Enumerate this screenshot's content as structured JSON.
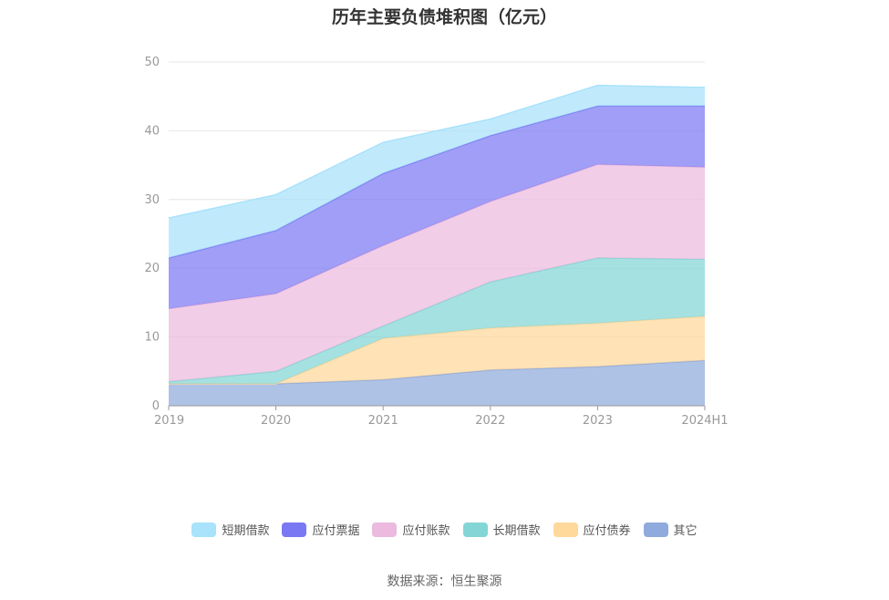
{
  "chart_data": {
    "type": "area",
    "stacked": true,
    "title": "历年主要负债堆积图（亿元）",
    "x": [
      "2019",
      "2020",
      "2021",
      "2022",
      "2023",
      "2024H1"
    ],
    "y_ticks": [
      "0",
      "10",
      "20",
      "30",
      "40",
      "50"
    ],
    "ylim": [
      0,
      50
    ],
    "grid": true,
    "legend_position": "bottom-center",
    "series": [
      {
        "name": "其它",
        "color": "#8faadc",
        "values": [
          3.2,
          3.2,
          3.8,
          5.2,
          5.7,
          6.6
        ]
      },
      {
        "name": "应付债券",
        "color": "#ffd89b",
        "values": [
          0,
          0,
          6.0,
          6.1,
          6.3,
          6.4
        ]
      },
      {
        "name": "长期借款",
        "color": "#84d6d6",
        "values": [
          0.3,
          1.8,
          1.8,
          6.7,
          9.5,
          8.3
        ]
      },
      {
        "name": "应付账款",
        "color": "#ebbade",
        "values": [
          10.6,
          11.3,
          11.7,
          11.7,
          13.6,
          13.4
        ]
      },
      {
        "name": "应付票据",
        "color": "#7b78f3",
        "values": [
          7.4,
          9.2,
          10.5,
          9.6,
          8.5,
          8.9
        ]
      },
      {
        "name": "短期借款",
        "color": "#a8e2fb",
        "values": [
          5.8,
          5.2,
          4.5,
          2.4,
          3.0,
          2.7
        ]
      }
    ],
    "legend_order": [
      "短期借款",
      "应付票据",
      "应付账款",
      "长期借款",
      "应付债券",
      "其它"
    ]
  },
  "source": "数据来源：恒生聚源"
}
